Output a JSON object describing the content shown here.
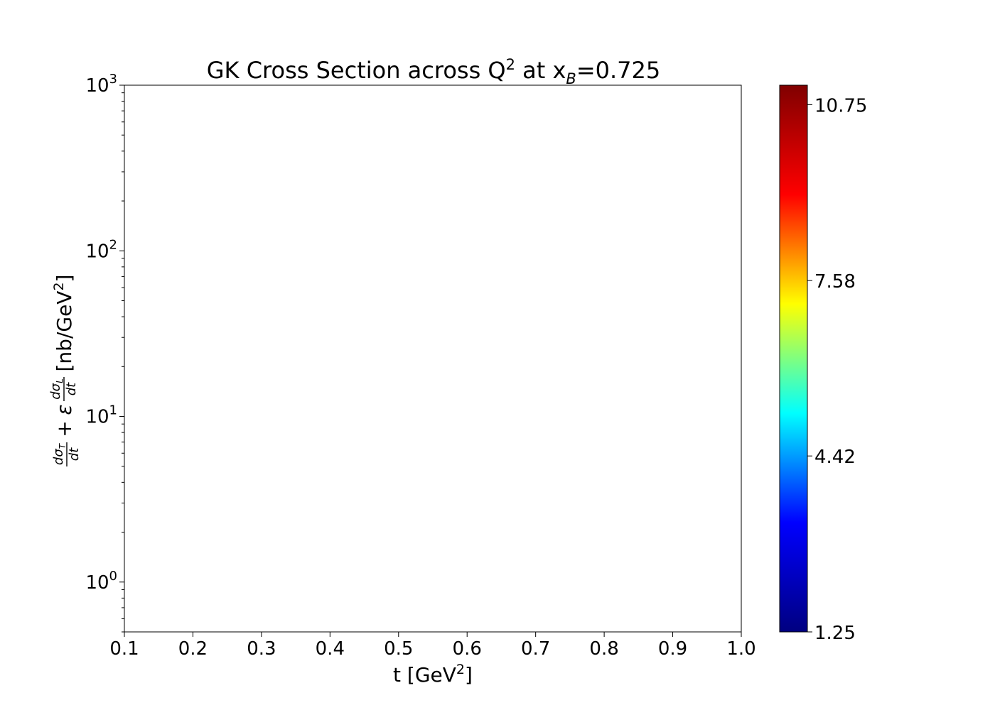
{
  "chart_data": {
    "type": "line",
    "title": {
      "base": "GK Cross Section across Q",
      "sup": "2",
      "mid": " at x",
      "sub": "B",
      "end": "=0.725"
    },
    "xlabel": {
      "base": "t [GeV",
      "sup": "2",
      "end": "]"
    },
    "ylabel": {
      "unit_base": "[nb/GeV",
      "unit_sup": "2",
      "unit_end": "]"
    },
    "xlim": [
      0.1,
      1.0
    ],
    "ylim": [
      0.5,
      1000
    ],
    "yscale": "log",
    "grid": false,
    "x_ticks": [
      "0.1",
      "0.2",
      "0.3",
      "0.4",
      "0.5",
      "0.6",
      "0.7",
      "0.8",
      "0.9",
      "1.0"
    ],
    "y_ticks": [
      {
        "value": 1,
        "base": "10",
        "exp": "0"
      },
      {
        "value": 10,
        "base": "10",
        "exp": "1"
      },
      {
        "value": 100,
        "base": "10",
        "exp": "2"
      },
      {
        "value": 1000,
        "base": "10",
        "exp": "3"
      }
    ],
    "series": [],
    "colorbar": {
      "colormap": "jet",
      "vmin": 1.25,
      "vmax": 11.1,
      "ticks": [
        "1.25",
        "4.42",
        "7.58",
        "10.75"
      ],
      "tick_values": [
        1.25,
        4.42,
        7.58,
        10.75
      ],
      "colors": [
        "#000080",
        "#0000ff",
        "#00ffff",
        "#ffff00",
        "#ff0000",
        "#800000"
      ]
    }
  }
}
